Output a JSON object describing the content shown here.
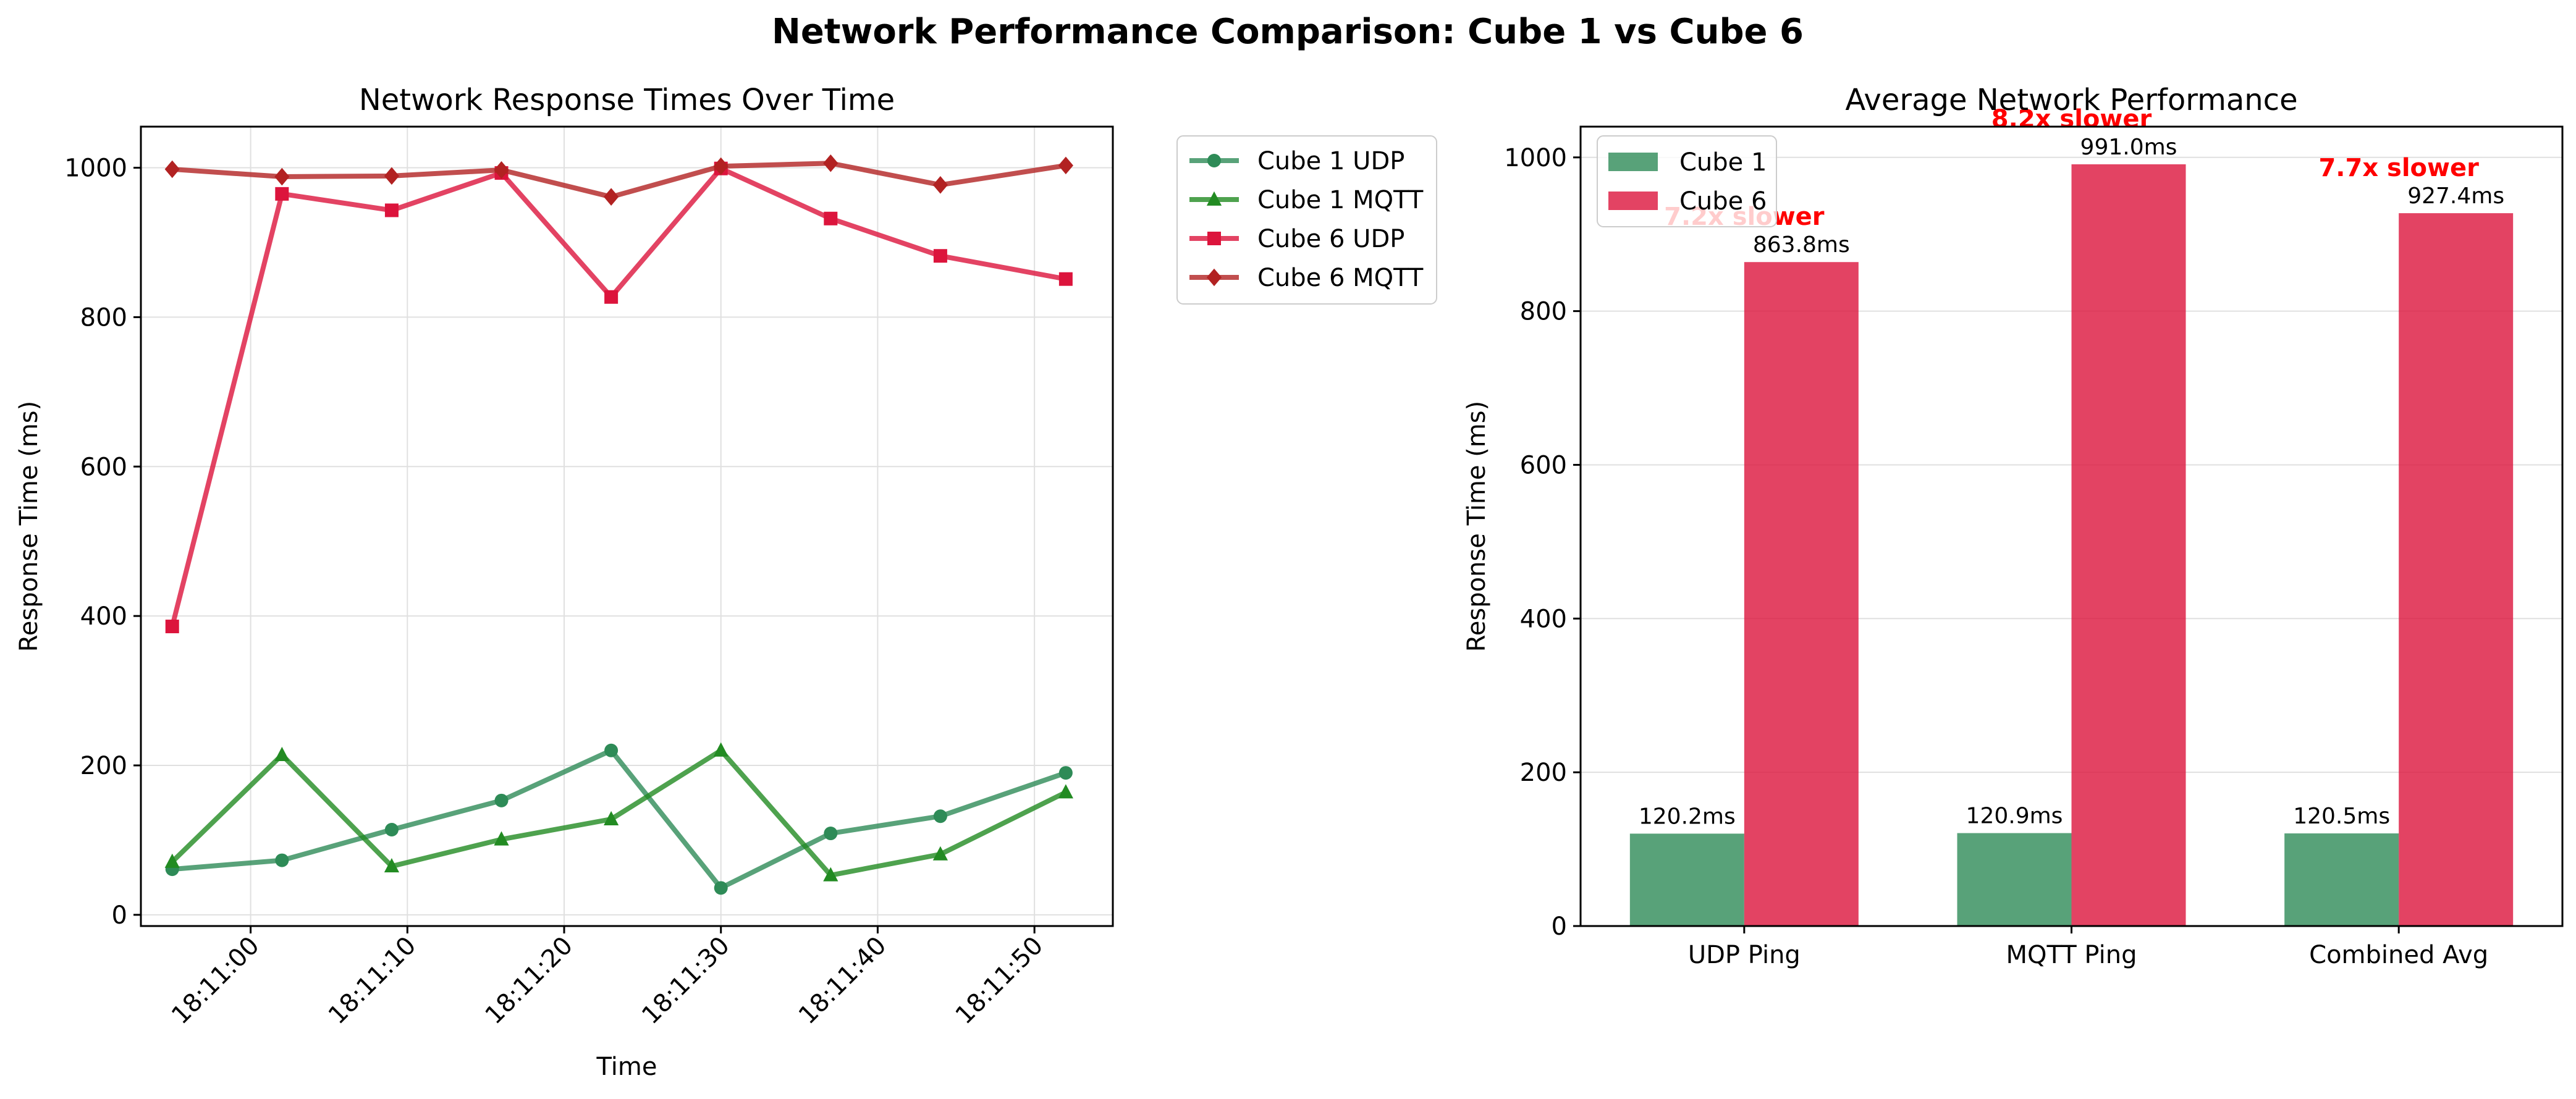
{
  "figure": {
    "title": "Network Performance Comparison: Cube 1 vs Cube 6"
  },
  "colors": {
    "cube1_udp": "#2e8b57",
    "cube1_mqtt": "#228b22",
    "cube6_udp": "#dc143c",
    "cube6_mqtt": "#b22222",
    "annotation": "#ff0000",
    "grid": "#e0e0e0"
  },
  "chart_data": [
    {
      "type": "line",
      "title": "Network Response Times Over Time",
      "xlabel": "Time",
      "ylabel": "Response Time (ms)",
      "x": [
        "18:10:55",
        "18:11:02",
        "18:11:09",
        "18:11:16",
        "18:11:23",
        "18:11:30",
        "18:11:37",
        "18:11:44",
        "18:11:52"
      ],
      "xticks": [
        "18:11:00",
        "18:11:10",
        "18:11:20",
        "18:11:30",
        "18:11:40",
        "18:11:50"
      ],
      "xlim": [
        "18:10:53",
        "18:11:55"
      ],
      "ylim": [
        -15,
        1055
      ],
      "yticks": [
        0,
        200,
        400,
        600,
        800,
        1000
      ],
      "grid": true,
      "legend_placement": "outside right",
      "series": [
        {
          "name": "Cube 1 UDP",
          "marker": "circle",
          "color": "#2e8b57",
          "values": [
            61,
            73,
            114,
            153,
            220,
            36,
            109,
            132,
            190
          ]
        },
        {
          "name": "Cube 1 MQTT",
          "marker": "triangle",
          "color": "#228b22",
          "values": [
            71,
            214,
            65,
            101,
            128,
            220,
            53,
            81,
            164
          ]
        },
        {
          "name": "Cube 6 UDP",
          "marker": "square",
          "color": "#dc143c",
          "values": [
            386,
            965,
            943,
            993,
            827,
            999,
            932,
            882,
            851
          ]
        },
        {
          "name": "Cube 6 MQTT",
          "marker": "diamond",
          "color": "#b22222",
          "values": [
            998,
            988,
            989,
            997,
            961,
            1002,
            1006,
            977,
            1003
          ]
        }
      ]
    },
    {
      "type": "bar",
      "title": "Average Network Performance",
      "xlabel": "",
      "ylabel": "Response Time (ms)",
      "categories": [
        "UDP Ping",
        "MQTT Ping",
        "Combined Avg"
      ],
      "ylim": [
        0,
        1040
      ],
      "yticks": [
        0,
        200,
        400,
        600,
        800,
        1000
      ],
      "grid": true,
      "legend_placement": "upper left",
      "series": [
        {
          "name": "Cube 1",
          "color": "#2e8b57",
          "values": [
            120.2,
            120.9,
            120.5
          ],
          "labels": [
            "120.2ms",
            "120.9ms",
            "120.5ms"
          ]
        },
        {
          "name": "Cube 6",
          "color": "#dc143c",
          "values": [
            863.8,
            991.0,
            927.4
          ],
          "labels": [
            "863.8ms",
            "991.0ms",
            "927.4ms"
          ]
        }
      ],
      "annotations": [
        "7.2x slower",
        "8.2x slower",
        "7.7x slower"
      ]
    }
  ]
}
